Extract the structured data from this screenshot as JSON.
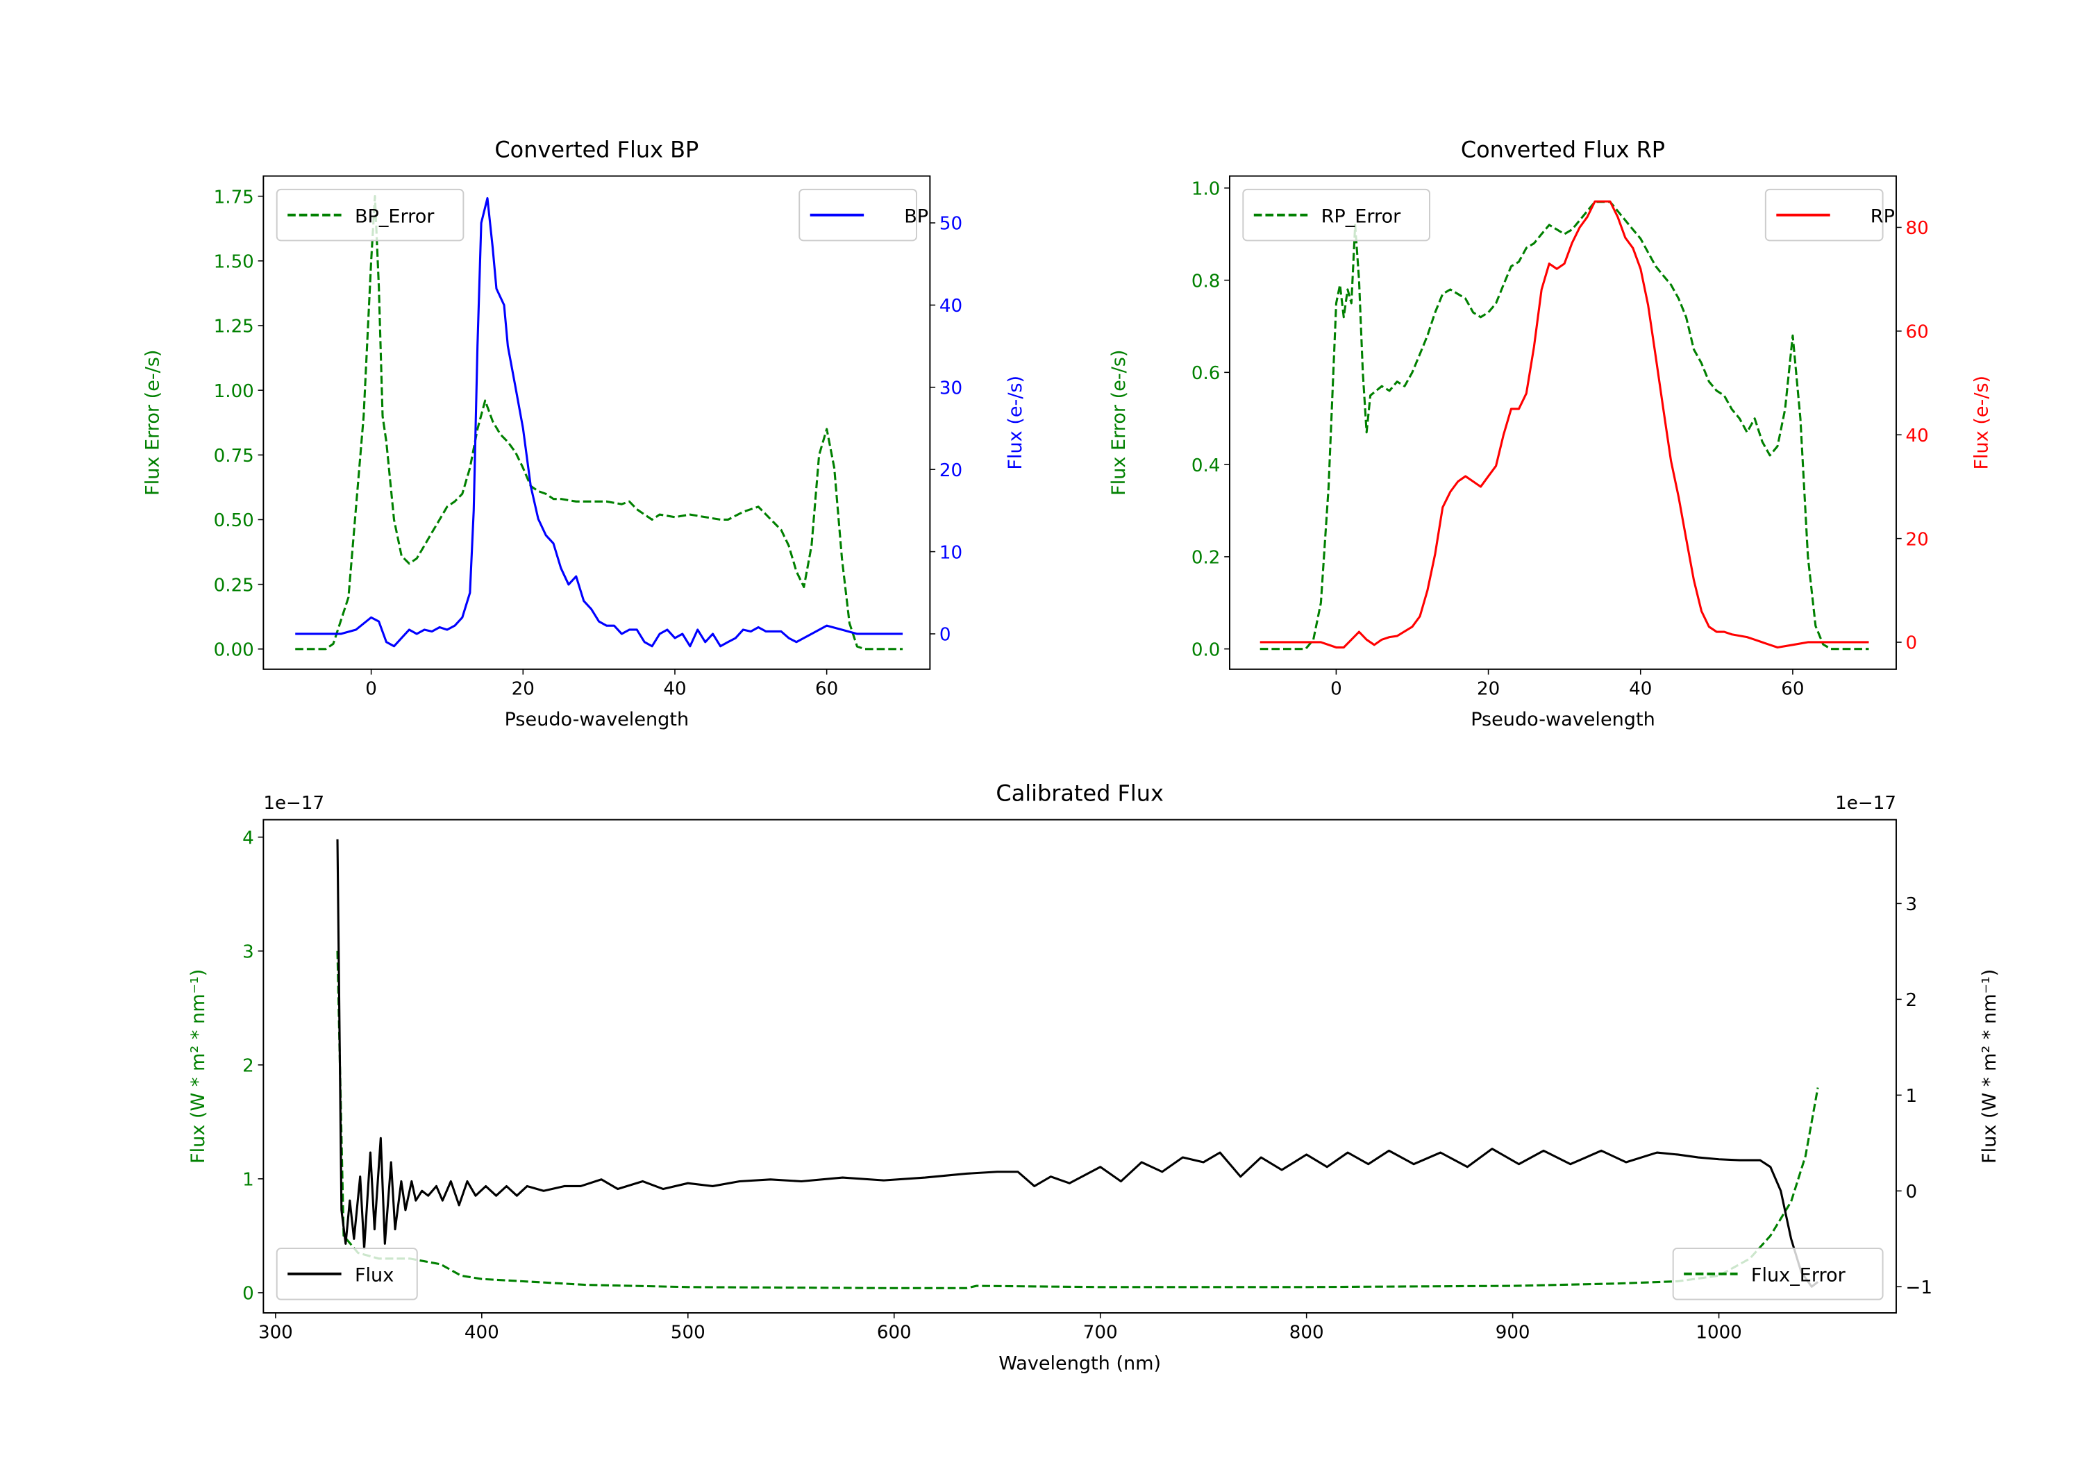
{
  "chart_data": [
    {
      "type": "line",
      "title": "Converted Flux BP",
      "xlabel": "Pseudo-wavelength",
      "ylabel_left": "Flux Error (e-/s)",
      "ylabel_right": "Flux (e-/s)",
      "left_color": "#008000",
      "right_color": "#0000ff",
      "xlim": [
        -14.2,
        73.6
      ],
      "ylim_left": [
        -0.078,
        1.828
      ],
      "ylim_right": [
        -4.3,
        55.7
      ],
      "xticks": [
        0,
        20,
        40,
        60
      ],
      "xtick_labels": [
        "0",
        "20",
        "40",
        "60"
      ],
      "yticks_left": [
        0,
        0.25,
        0.5,
        0.75,
        1.0,
        1.25,
        1.5,
        1.75
      ],
      "ytick_labels_left": [
        "0.00",
        "0.25",
        "0.50",
        "0.75",
        "1.00",
        "1.25",
        "1.50",
        "1.75"
      ],
      "yticks_right": [
        0,
        10,
        20,
        30,
        40,
        50
      ],
      "ytick_labels_right": [
        "0",
        "10",
        "20",
        "30",
        "40",
        "50"
      ],
      "legend_left": {
        "label": "BP_Error",
        "placement": "upper left"
      },
      "legend_right": {
        "label": "BP",
        "placement": "upper right"
      },
      "series": [
        {
          "name": "BP_Error",
          "axis": "left",
          "color": "#008000",
          "style": "dashed",
          "x": [
            -10,
            -6,
            -5,
            -3,
            -1,
            0,
            0.5,
            1,
            1.5,
            2,
            3,
            4,
            5,
            6,
            7,
            8,
            9,
            10,
            11,
            12,
            13,
            14,
            15,
            16,
            17,
            18,
            19,
            20,
            21,
            22,
            23,
            24,
            25,
            27,
            29,
            31,
            33,
            34,
            35,
            36,
            37,
            38,
            40,
            42,
            44,
            46,
            47,
            49,
            51,
            52,
            53,
            54,
            55,
            56,
            57,
            58,
            59,
            60,
            61,
            62,
            63,
            64,
            65,
            70
          ],
          "y": [
            0,
            0,
            0.02,
            0.2,
            0.9,
            1.5,
            1.75,
            1.4,
            0.9,
            0.8,
            0.5,
            0.36,
            0.33,
            0.35,
            0.4,
            0.45,
            0.5,
            0.55,
            0.57,
            0.6,
            0.7,
            0.85,
            0.96,
            0.88,
            0.83,
            0.8,
            0.76,
            0.7,
            0.63,
            0.61,
            0.6,
            0.58,
            0.58,
            0.57,
            0.57,
            0.57,
            0.56,
            0.57,
            0.54,
            0.52,
            0.5,
            0.52,
            0.51,
            0.52,
            0.51,
            0.5,
            0.5,
            0.53,
            0.55,
            0.52,
            0.49,
            0.46,
            0.4,
            0.3,
            0.24,
            0.4,
            0.75,
            0.85,
            0.7,
            0.35,
            0.1,
            0.01,
            0,
            0
          ]
        },
        {
          "name": "BP",
          "axis": "right",
          "color": "#0000ff",
          "style": "solid",
          "x": [
            -10,
            -4,
            -2,
            0,
            1,
            2,
            3,
            4,
            5,
            6,
            7,
            8,
            9,
            10,
            11,
            12,
            13,
            13.5,
            14,
            14.5,
            15.3,
            16,
            16.5,
            17.5,
            18,
            19,
            20,
            21,
            22,
            23,
            24,
            25,
            26,
            27,
            28,
            29,
            30,
            31,
            32,
            33,
            34,
            35,
            36,
            37,
            38,
            39,
            40,
            41,
            42,
            43,
            44,
            45,
            46,
            47,
            48,
            49,
            50,
            51,
            52,
            54,
            55,
            56,
            58,
            60,
            62,
            64,
            70
          ],
          "y": [
            0,
            0,
            0.5,
            2,
            1.5,
            -1,
            -1.5,
            -0.5,
            0.5,
            0,
            0.5,
            0.3,
            0.8,
            0.5,
            1,
            2,
            5,
            15,
            35,
            50,
            53,
            47,
            42,
            40,
            35,
            30,
            25,
            18,
            14,
            12,
            11,
            8,
            6,
            7,
            4,
            3,
            1.5,
            1,
            1,
            0,
            0.5,
            0.5,
            -1,
            -1.5,
            0,
            0.5,
            -0.5,
            0,
            -1.5,
            0.5,
            -1,
            0,
            -1.5,
            -1,
            -0.5,
            0.5,
            0.3,
            0.8,
            0.3,
            0.3,
            -0.5,
            -1,
            0,
            1,
            0.5,
            0,
            0
          ]
        }
      ]
    },
    {
      "type": "line",
      "title": "Converted Flux RP",
      "xlabel": "Pseudo-wavelength",
      "ylabel_left": "Flux Error (e-/s)",
      "ylabel_right": "Flux (e-/s)",
      "left_color": "#008000",
      "right_color": "#ff0000",
      "xlim": [
        -14.0,
        73.6
      ],
      "ylim_left": [
        -0.044,
        1.026
      ],
      "ylim_right": [
        -5.2,
        89.9
      ],
      "xticks": [
        0,
        20,
        40,
        60
      ],
      "xtick_labels": [
        "0",
        "20",
        "40",
        "60"
      ],
      "yticks_left": [
        0,
        0.2,
        0.4,
        0.6,
        0.8,
        1.0
      ],
      "ytick_labels_left": [
        "0.0",
        "0.2",
        "0.4",
        "0.6",
        "0.8",
        "1.0"
      ],
      "yticks_right": [
        0,
        20,
        40,
        60,
        80
      ],
      "ytick_labels_right": [
        "0",
        "20",
        "40",
        "60",
        "80"
      ],
      "legend_left": {
        "label": "RP_Error",
        "placement": "upper left"
      },
      "legend_right": {
        "label": "RP",
        "placement": "upper right"
      },
      "series": [
        {
          "name": "RP_Error",
          "axis": "left",
          "color": "#008000",
          "style": "dashed",
          "x": [
            -10,
            -4,
            -3,
            -2,
            -1,
            0,
            0.5,
            1,
            1.5,
            2,
            2.5,
            3,
            3.5,
            4,
            4.5,
            6,
            7,
            8,
            9,
            10,
            11,
            12,
            13,
            14,
            15,
            16,
            17,
            18,
            19,
            20,
            21,
            22,
            23,
            24,
            25,
            26,
            27,
            28,
            29,
            30,
            31,
            32,
            33,
            34,
            35,
            36,
            37,
            38,
            39,
            40,
            41,
            42,
            43,
            44,
            45,
            46,
            47,
            48,
            49,
            50,
            51,
            52,
            53,
            54,
            55,
            56,
            57,
            58,
            59,
            60,
            61,
            62,
            63,
            64,
            65,
            70
          ],
          "y": [
            0,
            0,
            0.02,
            0.1,
            0.35,
            0.75,
            0.79,
            0.72,
            0.78,
            0.75,
            0.92,
            0.8,
            0.6,
            0.47,
            0.55,
            0.57,
            0.56,
            0.58,
            0.57,
            0.6,
            0.64,
            0.68,
            0.73,
            0.77,
            0.78,
            0.77,
            0.76,
            0.73,
            0.72,
            0.73,
            0.75,
            0.79,
            0.83,
            0.84,
            0.87,
            0.88,
            0.9,
            0.92,
            0.91,
            0.9,
            0.91,
            0.93,
            0.95,
            0.97,
            0.97,
            0.97,
            0.95,
            0.93,
            0.91,
            0.89,
            0.86,
            0.83,
            0.81,
            0.79,
            0.76,
            0.72,
            0.65,
            0.62,
            0.58,
            0.56,
            0.55,
            0.52,
            0.5,
            0.47,
            0.5,
            0.45,
            0.42,
            0.44,
            0.52,
            0.68,
            0.5,
            0.2,
            0.05,
            0.01,
            0,
            0
          ]
        },
        {
          "name": "RP",
          "axis": "right",
          "color": "#ff0000",
          "style": "solid",
          "x": [
            -10,
            -2,
            0,
            1,
            2,
            3,
            4,
            5,
            6,
            7,
            8,
            10,
            11,
            12,
            13,
            14,
            15,
            16,
            17,
            18,
            19,
            20,
            21,
            22,
            23,
            24,
            25,
            26,
            27,
            28,
            29,
            30,
            31,
            32,
            33,
            34,
            35,
            36,
            37,
            38,
            39,
            40,
            41,
            42,
            43,
            44,
            45,
            46,
            47,
            48,
            49,
            50,
            51,
            52,
            54,
            55,
            57,
            58,
            60,
            62,
            70
          ],
          "y": [
            0,
            0,
            -1,
            -1,
            0.5,
            2,
            0.5,
            -0.5,
            0.5,
            1,
            1.2,
            3,
            5,
            10,
            17,
            26,
            29,
            31,
            32,
            31,
            30,
            32,
            34,
            40,
            45,
            45,
            48,
            57,
            68,
            73,
            72,
            73,
            77,
            80,
            82,
            85,
            85,
            85,
            82,
            78,
            76,
            72,
            65,
            55,
            45,
            35,
            28,
            20,
            12,
            6,
            3,
            2,
            2,
            1.5,
            1,
            0.5,
            -0.5,
            -1,
            -0.5,
            0,
            0
          ]
        }
      ]
    },
    {
      "type": "line",
      "title": "Calibrated Flux",
      "xlabel": "Wavelength (nm)",
      "ylabel_left": "Flux (W * m² * nm⁻¹)",
      "ylabel_right": "Flux (W * m² * nm⁻¹)",
      "left_color": "#008000",
      "right_color": "#000000",
      "offset_left": "1e−17",
      "offset_right": "1e−17",
      "xlim": [
        294.1,
        1086
      ],
      "ylim_left": [
        -0.177,
        4.153
      ],
      "ylim_right": [
        -1.273,
        3.875
      ],
      "xticks": [
        300,
        400,
        500,
        600,
        700,
        800,
        900,
        1000
      ],
      "xtick_labels": [
        "300",
        "400",
        "500",
        "600",
        "700",
        "800",
        "900",
        "1000"
      ],
      "yticks_left": [
        0,
        1,
        2,
        3,
        4
      ],
      "ytick_labels_left": [
        "0",
        "1",
        "2",
        "3",
        "4"
      ],
      "yticks_right": [
        -1,
        0,
        1,
        2,
        3
      ],
      "ytick_labels_right": [
        "−1",
        "0",
        "1",
        "2",
        "3"
      ],
      "legend_left": {
        "label": "Flux",
        "placement": "lower left"
      },
      "legend_right": {
        "label": "Flux_Error",
        "placement": "lower right"
      },
      "series": [
        {
          "name": "Flux_Error",
          "axis": "left",
          "color": "#008000",
          "style": "dashed",
          "x": [
            330,
            333,
            340,
            350,
            365,
            380,
            390,
            400,
            420,
            450,
            500,
            600,
            635,
            640,
            700,
            800,
            900,
            950,
            980,
            1000,
            1015,
            1025,
            1035,
            1042,
            1048
          ],
          "y": [
            3.0,
            0.5,
            0.35,
            0.3,
            0.3,
            0.25,
            0.15,
            0.12,
            0.1,
            0.07,
            0.05,
            0.04,
            0.04,
            0.06,
            0.05,
            0.05,
            0.06,
            0.08,
            0.1,
            0.15,
            0.3,
            0.5,
            0.8,
            1.2,
            1.8
          ]
        },
        {
          "name": "Flux",
          "axis": "right",
          "color": "#000000",
          "style": "solid",
          "x": [
            330,
            332,
            334,
            336,
            338,
            341,
            343,
            346,
            348,
            351,
            353,
            356,
            358,
            361,
            363,
            366,
            368,
            371,
            374,
            378,
            381,
            385,
            389,
            393,
            397,
            402,
            407,
            412,
            417,
            422,
            430,
            440,
            448,
            458,
            466,
            478,
            488,
            500,
            512,
            525,
            540,
            555,
            575,
            595,
            615,
            635,
            650,
            660,
            668,
            676,
            685,
            700,
            710,
            720,
            730,
            740,
            750,
            758,
            768,
            778,
            788,
            800,
            810,
            820,
            830,
            840,
            852,
            865,
            878,
            890,
            903,
            915,
            928,
            943,
            955,
            970,
            980,
            990,
            1000,
            1010,
            1020,
            1025,
            1030,
            1035,
            1040,
            1045,
            1048
          ],
          "y": [
            3.67,
            -0.2,
            -0.55,
            -0.1,
            -0.5,
            0.15,
            -0.6,
            0.4,
            -0.4,
            0.55,
            -0.55,
            0.3,
            -0.4,
            0.1,
            -0.2,
            0.1,
            -0.1,
            0.0,
            -0.05,
            0.05,
            -0.1,
            0.1,
            -0.15,
            0.1,
            -0.05,
            0.05,
            -0.05,
            0.05,
            -0.05,
            0.05,
            0.0,
            0.05,
            0.05,
            0.12,
            0.02,
            0.1,
            0.02,
            0.08,
            0.05,
            0.1,
            0.12,
            0.1,
            0.14,
            0.11,
            0.14,
            0.18,
            0.2,
            0.2,
            0.05,
            0.15,
            0.08,
            0.25,
            0.1,
            0.3,
            0.2,
            0.35,
            0.3,
            0.4,
            0.15,
            0.35,
            0.22,
            0.38,
            0.25,
            0.4,
            0.28,
            0.42,
            0.28,
            0.4,
            0.25,
            0.44,
            0.28,
            0.42,
            0.28,
            0.42,
            0.3,
            0.4,
            0.38,
            0.35,
            0.33,
            0.32,
            0.32,
            0.25,
            0,
            -0.5,
            -0.85,
            -1.0,
            -0.95
          ]
        }
      ]
    }
  ]
}
